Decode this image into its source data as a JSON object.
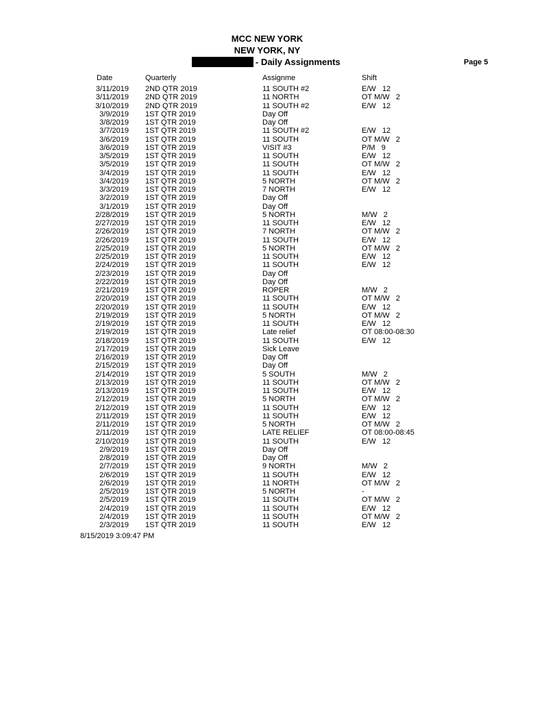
{
  "header": {
    "line1": "MCC NEW YORK",
    "line2": "NEW YORK, NY",
    "report_title": "- Daily Assignments",
    "page": "Page 5"
  },
  "columns": {
    "date": "Date",
    "quarterly": "Quarterly",
    "assignment": "Assignme",
    "shift": "Shift"
  },
  "rows": [
    [
      "3/11/2019",
      "2ND QTR 2019",
      "11 SOUTH #2",
      "E/W   12"
    ],
    [
      "3/11/2019",
      "2ND QTR 2019",
      "11 NORTH",
      "OT M/W   2"
    ],
    [
      "3/10/2019",
      "2ND QTR 2019",
      "11 SOUTH #2",
      "E/W   12"
    ],
    [
      "3/9/2019",
      "1ST QTR 2019",
      "Day Off",
      ""
    ],
    [
      "3/8/2019",
      "1ST QTR 2019",
      "Day Off",
      ""
    ],
    [
      "3/7/2019",
      "1ST QTR 2019",
      "11 SOUTH #2",
      "E/W   12"
    ],
    [
      "3/6/2019",
      "1ST QTR 2019",
      "11 SOUTH",
      "OT M/W   2"
    ],
    [
      "3/6/2019",
      "1ST QTR 2019",
      "VISIT #3",
      "P/M   9"
    ],
    [
      "3/5/2019",
      "1ST QTR 2019",
      "11 SOUTH",
      "E/W   12"
    ],
    [
      "3/5/2019",
      "1ST QTR 2019",
      "11 SOUTH",
      "OT M/W   2"
    ],
    [
      "3/4/2019",
      "1ST QTR 2019",
      "11 SOUTH",
      "E/W   12"
    ],
    [
      "3/4/2019",
      "1ST QTR 2019",
      "5 NORTH",
      "OT M/W   2"
    ],
    [
      "3/3/2019",
      "1ST QTR 2019",
      "7 NORTH",
      "E/W   12"
    ],
    [
      "3/2/2019",
      "1ST QTR 2019",
      "Day Off",
      ""
    ],
    [
      "3/1/2019",
      "1ST QTR 2019",
      "Day Off",
      ""
    ],
    [
      "2/28/2019",
      "1ST QTR 2019",
      "5 NORTH",
      "M/W   2"
    ],
    [
      "2/27/2019",
      "1ST QTR 2019",
      "11 SOUTH",
      "E/W   12"
    ],
    [
      "2/26/2019",
      "1ST QTR 2019",
      "7 NORTH",
      "OT M/W   2"
    ],
    [
      "2/26/2019",
      "1ST QTR 2019",
      "11 SOUTH",
      "E/W   12"
    ],
    [
      "2/25/2019",
      "1ST QTR 2019",
      "5 NORTH",
      "OT M/W   2"
    ],
    [
      "2/25/2019",
      "1ST QTR 2019",
      "11 SOUTH",
      "E/W   12"
    ],
    [
      "2/24/2019",
      "1ST QTR 2019",
      "11 SOUTH",
      "E/W   12"
    ],
    [
      "2/23/2019",
      "1ST QTR 2019",
      "Day Off",
      ""
    ],
    [
      "2/22/2019",
      "1ST QTR 2019",
      "Day Off",
      ""
    ],
    [
      "2/21/2019",
      "1ST QTR 2019",
      "ROPER",
      "M/W   2"
    ],
    [
      "2/20/2019",
      "1ST QTR 2019",
      "11 SOUTH",
      "OT M/W   2"
    ],
    [
      "2/20/2019",
      "1ST QTR 2019",
      "11 SOUTH",
      "E/W   12"
    ],
    [
      "2/19/2019",
      "1ST QTR 2019",
      "5 NORTH",
      "OT M/W   2"
    ],
    [
      "2/19/2019",
      "1ST QTR 2019",
      "11 SOUTH",
      "E/W   12"
    ],
    [
      "2/19/2019",
      "1ST QTR 2019",
      "Late relief",
      "OT 08:00-08:30"
    ],
    [
      "2/18/2019",
      "1ST QTR 2019",
      "11 SOUTH",
      "E/W   12"
    ],
    [
      "2/17/2019",
      "1ST QTR 2019",
      "Sick Leave",
      ""
    ],
    [
      "2/16/2019",
      "1ST QTR 2019",
      "Day Off",
      ""
    ],
    [
      "2/15/2019",
      "1ST QTR 2019",
      "Day Off",
      ""
    ],
    [
      "2/14/2019",
      "1ST QTR 2019",
      "5 SOUTH",
      "M/W   2"
    ],
    [
      "2/13/2019",
      "1ST QTR 2019",
      "11 SOUTH",
      "OT M/W   2"
    ],
    [
      "2/13/2019",
      "1ST QTR 2019",
      "11 SOUTH",
      "E/W   12"
    ],
    [
      "2/12/2019",
      "1ST QTR 2019",
      "5 NORTH",
      "OT M/W   2"
    ],
    [
      "2/12/2019",
      "1ST QTR 2019",
      "11 SOUTH",
      "E/W   12"
    ],
    [
      "2/11/2019",
      "1ST QTR 2019",
      "11 SOUTH",
      "E/W   12"
    ],
    [
      "2/11/2019",
      "1ST QTR 2019",
      "5 NORTH",
      "OT M/W   2"
    ],
    [
      "2/11/2019",
      "1ST QTR 2019",
      "LATE RELIEF",
      "OT 08:00-08:45"
    ],
    [
      "2/10/2019",
      "1ST QTR 2019",
      "11 SOUTH",
      "E/W   12"
    ],
    [
      "2/9/2019",
      "1ST QTR 2019",
      "Day Off",
      ""
    ],
    [
      "2/8/2019",
      "1ST QTR 2019",
      "Day Off",
      ""
    ],
    [
      "2/7/2019",
      "1ST QTR 2019",
      "9 NORTH",
      "M/W   2"
    ],
    [
      "2/6/2019",
      "1ST QTR 2019",
      "11 SOUTH",
      "E/W   12"
    ],
    [
      "2/6/2019",
      "1ST QTR 2019",
      "11 NORTH",
      "OT M/W   2"
    ],
    [
      "2/5/2019",
      "1ST QTR 2019",
      "5 NORTH",
      "-"
    ],
    [
      "2/5/2019",
      "1ST QTR 2019",
      "11 SOUTH",
      "OT M/W   2"
    ],
    [
      "2/4/2019",
      "1ST QTR 2019",
      "11 SOUTH",
      "E/W   12"
    ],
    [
      "2/4/2019",
      "1ST QTR 2019",
      "11 SOUTH",
      "OT M/W   2"
    ],
    [
      "2/3/2019",
      "1ST QTR 2019",
      "11 SOUTH",
      "E/W   12"
    ]
  ],
  "footer": {
    "printed": "8/15/2019 3:09:47 PM"
  }
}
